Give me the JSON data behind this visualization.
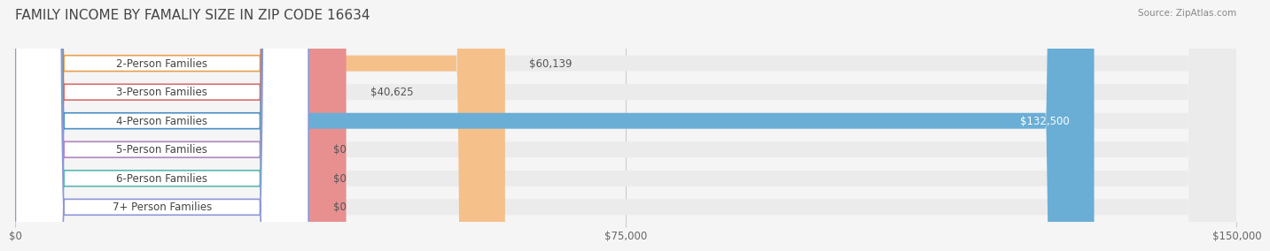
{
  "title": "FAMILY INCOME BY FAMALIY SIZE IN ZIP CODE 16634",
  "source": "Source: ZipAtlas.com",
  "categories": [
    "2-Person Families",
    "3-Person Families",
    "4-Person Families",
    "5-Person Families",
    "6-Person Families",
    "7+ Person Families"
  ],
  "values": [
    60139,
    40625,
    132500,
    0,
    0,
    0
  ],
  "bar_colors": [
    "#f5c08a",
    "#e89090",
    "#6aaed6",
    "#c9a8d4",
    "#7ecec4",
    "#b0b8e8"
  ],
  "label_colors": [
    "#e8a050",
    "#d97070",
    "#4a90c8",
    "#b088c0",
    "#5ab8b0",
    "#9098d8"
  ],
  "xlim": [
    0,
    150000
  ],
  "xticks": [
    0,
    75000,
    150000
  ],
  "xtick_labels": [
    "$0",
    "$75,000",
    "$150,000"
  ],
  "bar_height": 0.55,
  "background_color": "#f5f5f5",
  "bar_bg_color": "#ebebeb",
  "label_fontsize": 8.5,
  "value_fontsize": 8.5,
  "title_fontsize": 11
}
